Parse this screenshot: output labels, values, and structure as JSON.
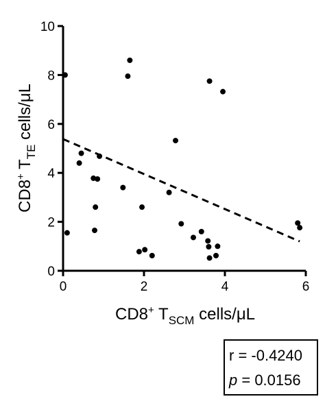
{
  "chart_data": {
    "type": "scatter",
    "title": "",
    "xlabel": {
      "base": "CD8",
      "sup": "+",
      "mid": " T",
      "sub": "SCM",
      "tail": " cells/μL"
    },
    "ylabel": {
      "base": "CD8",
      "sup": "+",
      "mid": " T",
      "sub": "TE",
      "tail": " cells/μL"
    },
    "xlim": [
      0,
      6
    ],
    "ylim": [
      0,
      10
    ],
    "x_ticks": [
      0,
      2,
      4,
      6
    ],
    "y_ticks": [
      0,
      2,
      4,
      6,
      8,
      10
    ],
    "grid": false,
    "points": [
      {
        "x": 0.05,
        "y": 8.0
      },
      {
        "x": 0.1,
        "y": 1.55
      },
      {
        "x": 0.4,
        "y": 4.4
      },
      {
        "x": 0.45,
        "y": 4.8
      },
      {
        "x": 0.75,
        "y": 3.78
      },
      {
        "x": 0.78,
        "y": 1.65
      },
      {
        "x": 0.8,
        "y": 2.6
      },
      {
        "x": 0.85,
        "y": 3.75
      },
      {
        "x": 0.9,
        "y": 4.68
      },
      {
        "x": 1.48,
        "y": 3.4
      },
      {
        "x": 1.6,
        "y": 7.95
      },
      {
        "x": 1.65,
        "y": 8.6
      },
      {
        "x": 1.88,
        "y": 0.78
      },
      {
        "x": 1.95,
        "y": 2.6
      },
      {
        "x": 2.02,
        "y": 0.86
      },
      {
        "x": 2.2,
        "y": 0.62
      },
      {
        "x": 2.62,
        "y": 3.2
      },
      {
        "x": 2.78,
        "y": 5.32
      },
      {
        "x": 2.92,
        "y": 1.92
      },
      {
        "x": 3.22,
        "y": 1.36
      },
      {
        "x": 3.42,
        "y": 1.6
      },
      {
        "x": 3.58,
        "y": 1.22
      },
      {
        "x": 3.6,
        "y": 0.98
      },
      {
        "x": 3.62,
        "y": 0.52
      },
      {
        "x": 3.62,
        "y": 7.75
      },
      {
        "x": 3.78,
        "y": 0.62
      },
      {
        "x": 3.82,
        "y": 1.0
      },
      {
        "x": 3.95,
        "y": 7.32
      },
      {
        "x": 5.8,
        "y": 1.95
      },
      {
        "x": 5.85,
        "y": 1.76
      }
    ],
    "trend_line": {
      "style": "dashed",
      "x": [
        0,
        5.85
      ],
      "y": [
        5.38,
        1.2
      ]
    },
    "stats": {
      "r_label": "r = -0.4240",
      "p_symbol": "p",
      "p_rest": " = 0.0156"
    }
  }
}
